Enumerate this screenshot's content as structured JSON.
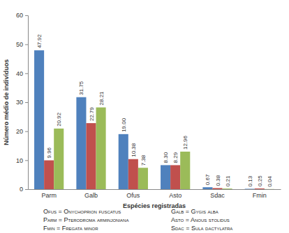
{
  "chart_data": {
    "type": "bar",
    "categories": [
      "Parm",
      "Galb",
      "Ofus",
      "Asto",
      "Sdac",
      "Fmin"
    ],
    "series": [
      {
        "color": "#4f81bd",
        "values": [
          47.92,
          31.75,
          19.0,
          8.3,
          0.67,
          0.13
        ],
        "value_labels": [
          "47.92",
          "31.75",
          "19.00",
          "8.30",
          "0.67",
          "0.13"
        ]
      },
      {
        "color": "#c0504d",
        "values": [
          9.96,
          22.79,
          10.38,
          8.29,
          0.38,
          0.25
        ],
        "value_labels": [
          "9.96",
          "22.79",
          "10.38",
          "8.29",
          "0.38",
          "0.25"
        ]
      },
      {
        "color": "#9bbb59",
        "values": [
          20.92,
          28.21,
          7.38,
          12.96,
          0.21,
          0.04
        ],
        "value_labels": [
          "20.92",
          "28.21",
          "7.38",
          "12.96",
          "0.21",
          "0.04"
        ]
      }
    ],
    "x_label": "Espécies registradas",
    "y_label": "Número médio de indivíduos",
    "ylim": [
      0,
      60
    ],
    "yticks": [
      0,
      10,
      20,
      30,
      40,
      50,
      60
    ],
    "grid": false,
    "data_labels": true,
    "annotations": [
      "Ofus = Onychoprion fuscatus",
      "Galb = Gygis alba",
      "Parm = Pterodroma arminjoniana",
      "Asto = Anous stolidus",
      "Fmin = Fregata minor",
      "Sdac = Sula dactylatra"
    ]
  }
}
